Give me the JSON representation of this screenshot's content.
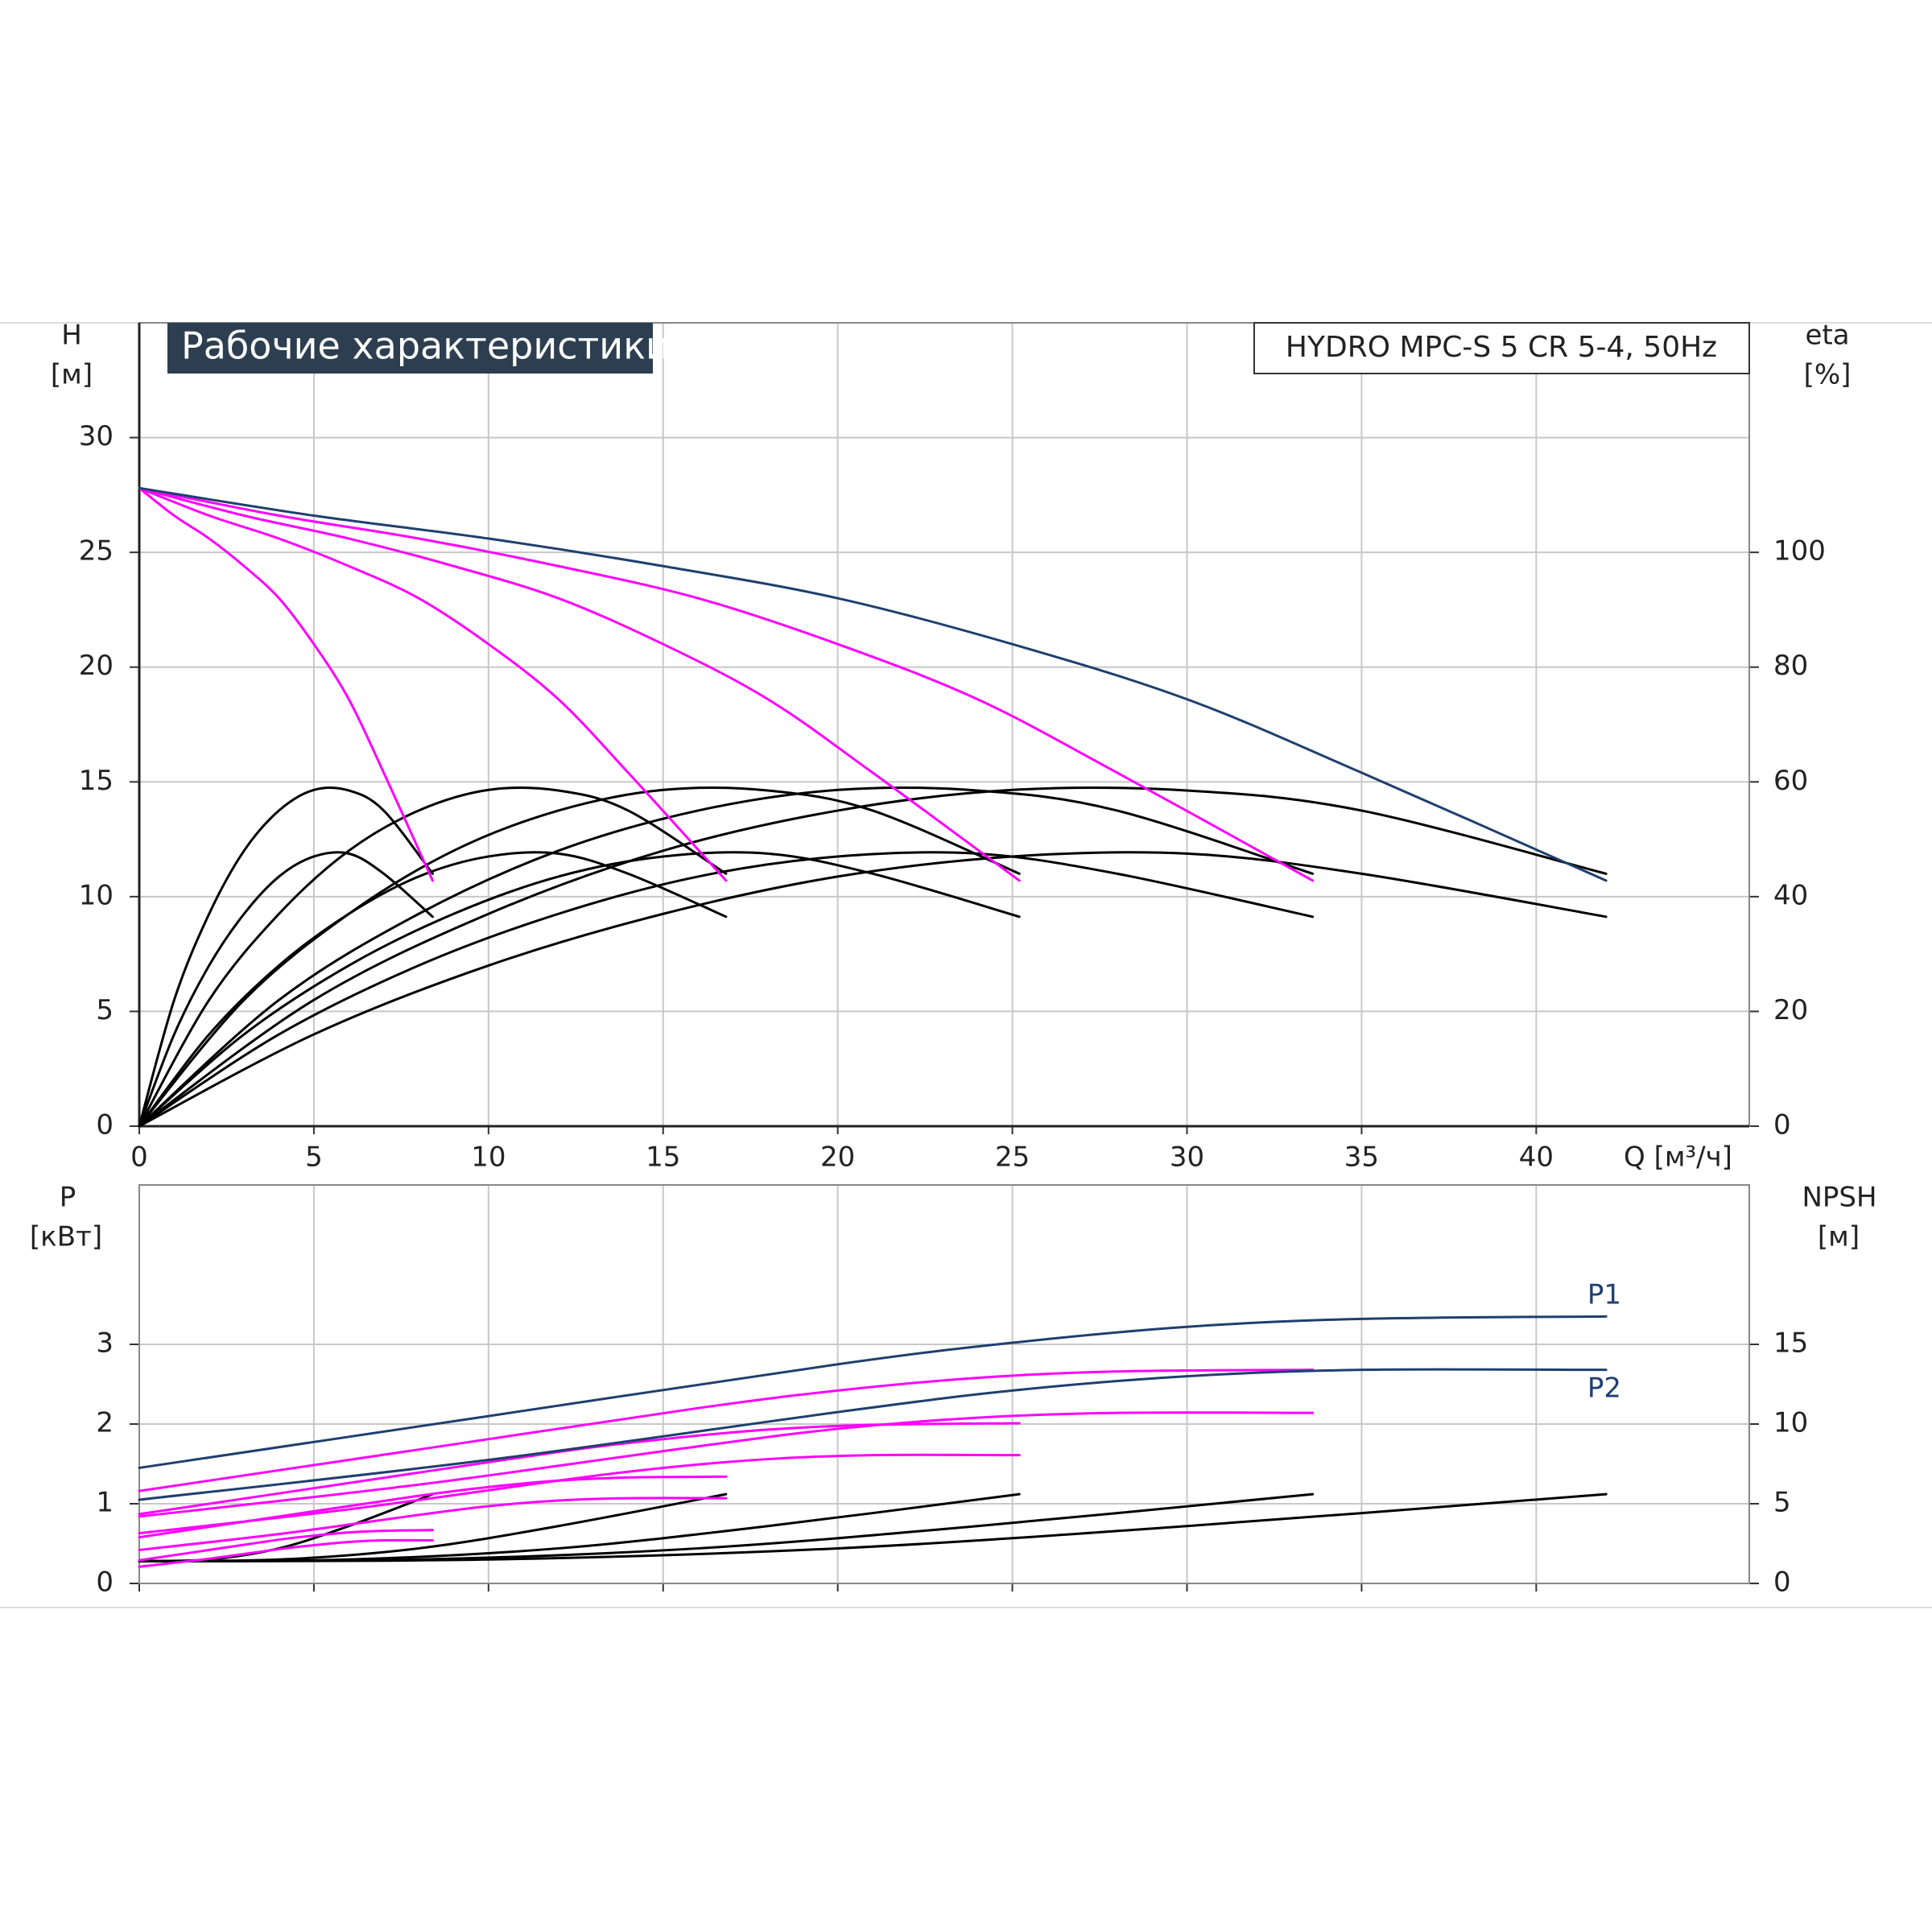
{
  "chart_data": [
    {
      "type": "line",
      "title": "Рабочие характеристики",
      "subtitle": "HYDRO MPC-S 5 CR 5-4, 50Hz",
      "ylabel": "H",
      "yunit": "[м]",
      "y2label": "eta",
      "y2unit": "[%]",
      "xlabel": "Q [м³/ч]",
      "xlim": [
        0,
        46.1
      ],
      "xticks": [
        0,
        5,
        10,
        15,
        20,
        25,
        30,
        35,
        40
      ],
      "ylim": [
        0,
        35
      ],
      "yticks": [
        0,
        5,
        10,
        15,
        20,
        25,
        30
      ],
      "y2lim": [
        0,
        140
      ],
      "y2ticks": [
        0,
        20,
        40,
        60,
        80,
        100
      ],
      "grid": true,
      "series": [
        {
          "color": "#000000",
          "axis": "y2",
          "x": [
            0,
            1,
            2,
            3,
            4,
            5,
            6,
            7,
            8.4
          ],
          "values": [
            0,
            22,
            37,
            48,
            55,
            58.6,
            58.5,
            55,
            44
          ]
        },
        {
          "color": "#000000",
          "axis": "y2",
          "x": [
            0,
            2,
            4,
            6,
            8,
            10,
            12,
            14,
            16.8
          ],
          "values": [
            0,
            22,
            37,
            48,
            55,
            58.6,
            58.5,
            55,
            44
          ]
        },
        {
          "color": "#000000",
          "axis": "y2",
          "x": [
            0,
            3,
            6,
            9,
            12,
            15,
            18,
            21,
            25.2
          ],
          "values": [
            0,
            22,
            37,
            48,
            55,
            58.6,
            58.5,
            55,
            44
          ]
        },
        {
          "color": "#000000",
          "axis": "y2",
          "x": [
            0,
            4,
            8,
            12,
            16,
            20,
            24,
            28,
            33.6
          ],
          "values": [
            0,
            22,
            37,
            48,
            55,
            58.6,
            58.5,
            55,
            44
          ]
        },
        {
          "color": "#000000",
          "axis": "y2",
          "x": [
            0,
            5,
            10,
            15,
            20,
            25,
            30,
            35,
            42
          ],
          "values": [
            0,
            22,
            37,
            48,
            55,
            58.6,
            58.5,
            55,
            44
          ]
        },
        {
          "color": "#000000",
          "axis": "y2",
          "x": [
            0,
            1,
            2,
            3,
            4,
            5,
            6,
            7,
            8.4
          ],
          "values": [
            0,
            16,
            28,
            37,
            43.5,
            47,
            47.5,
            44,
            36.5
          ]
        },
        {
          "color": "#000000",
          "axis": "y2",
          "x": [
            0,
            2,
            4,
            6,
            8,
            10,
            12,
            14,
            16.8
          ],
          "values": [
            0,
            16,
            28,
            37,
            43.5,
            47,
            47.5,
            44,
            36.5
          ]
        },
        {
          "color": "#000000",
          "axis": "y2",
          "x": [
            0,
            3,
            6,
            9,
            12,
            15,
            18,
            21,
            25.2
          ],
          "values": [
            0,
            16,
            28,
            37,
            43.5,
            47,
            47.5,
            44,
            36.5
          ]
        },
        {
          "color": "#000000",
          "axis": "y2",
          "x": [
            0,
            4,
            8,
            12,
            16,
            20,
            24,
            28,
            33.6
          ],
          "values": [
            0,
            16,
            28,
            37,
            43.5,
            47,
            47.5,
            44,
            36.5
          ]
        },
        {
          "color": "#000000",
          "axis": "y2",
          "x": [
            0,
            5,
            10,
            15,
            20,
            25,
            30,
            35,
            42
          ],
          "values": [
            0,
            16,
            28,
            37,
            43.5,
            47,
            47.5,
            44,
            36.5
          ]
        },
        {
          "color": "#ff00ff",
          "x": [
            0,
            1,
            2,
            3,
            4,
            5,
            6,
            7,
            8.4
          ],
          "values": [
            27.8,
            26.6,
            25.6,
            24.4,
            23.0,
            21.0,
            18.6,
            15.4,
            10.7
          ]
        },
        {
          "color": "#ff00ff",
          "x": [
            0,
            2,
            4,
            6,
            8,
            10,
            12,
            14,
            16.8
          ],
          "values": [
            27.8,
            26.6,
            25.6,
            24.4,
            23.0,
            21.0,
            18.6,
            15.4,
            10.7
          ]
        },
        {
          "color": "#ff00ff",
          "x": [
            0,
            3,
            6,
            9,
            12,
            15,
            18,
            21,
            25.2
          ],
          "values": [
            27.8,
            26.6,
            25.6,
            24.4,
            23.0,
            21.0,
            18.6,
            15.4,
            10.7
          ]
        },
        {
          "color": "#ff00ff",
          "x": [
            0,
            4,
            8,
            12,
            16,
            20,
            24,
            28,
            33.6
          ],
          "values": [
            27.8,
            26.6,
            25.6,
            24.4,
            23.0,
            21.0,
            18.6,
            15.4,
            10.7
          ]
        },
        {
          "color": "#1f3f6e",
          "x": [
            0,
            5,
            10,
            15,
            20,
            25,
            30,
            35,
            42
          ],
          "values": [
            27.8,
            26.6,
            25.6,
            24.4,
            23.0,
            21.0,
            18.6,
            15.4,
            10.7
          ]
        }
      ]
    },
    {
      "type": "line",
      "ylabel": "P",
      "yunit": "[кВт]",
      "y2label": "NPSH",
      "y2unit": "[м]",
      "annotations": [
        "P1",
        "P2"
      ],
      "xlim": [
        0,
        46.1
      ],
      "xticks": [
        0,
        5,
        10,
        15,
        20,
        25,
        30,
        35,
        40
      ],
      "ylim": [
        0,
        5
      ],
      "yticks": [
        0,
        1,
        2,
        3
      ],
      "y2lim": [
        0,
        25
      ],
      "y2ticks": [
        0,
        5,
        10,
        15
      ],
      "grid": true,
      "series": [
        {
          "color": "#000000",
          "axis": "y2",
          "x": [
            0,
            2,
            4,
            6,
            8.4
          ],
          "values": [
            1.4,
            1.5,
            2.2,
            3.6,
            5.6
          ]
        },
        {
          "color": "#000000",
          "axis": "y2",
          "x": [
            0,
            4,
            8,
            12,
            16.8
          ],
          "values": [
            1.4,
            1.5,
            2.2,
            3.6,
            5.6
          ]
        },
        {
          "color": "#000000",
          "axis": "y2",
          "x": [
            0,
            6,
            12,
            18,
            25.2
          ],
          "values": [
            1.4,
            1.5,
            2.2,
            3.6,
            5.6
          ]
        },
        {
          "color": "#000000",
          "axis": "y2",
          "x": [
            0,
            8,
            16,
            24,
            33.6
          ],
          "values": [
            1.4,
            1.5,
            2.2,
            3.6,
            5.6
          ]
        },
        {
          "color": "#000000",
          "axis": "y2",
          "x": [
            0,
            10,
            20,
            30,
            42
          ],
          "values": [
            1.4,
            1.5,
            2.2,
            3.6,
            5.6
          ]
        },
        {
          "color": "#ff00ff",
          "x": [
            0,
            2,
            4,
            5,
            6,
            7,
            8.4
          ],
          "values": [
            0.21,
            0.31,
            0.43,
            0.48,
            0.52,
            0.54,
            0.54
          ]
        },
        {
          "color": "#ff00ff",
          "x": [
            0,
            4,
            8,
            10,
            12,
            14,
            16.8
          ],
          "values": [
            0.42,
            0.62,
            0.86,
            0.97,
            1.04,
            1.07,
            1.07
          ]
        },
        {
          "color": "#ff00ff",
          "x": [
            0,
            6,
            12,
            15,
            18,
            21,
            25.2
          ],
          "values": [
            0.63,
            0.93,
            1.29,
            1.45,
            1.56,
            1.61,
            1.61
          ]
        },
        {
          "color": "#ff00ff",
          "x": [
            0,
            8,
            16,
            20,
            24,
            28,
            33.6
          ],
          "values": [
            0.84,
            1.24,
            1.72,
            1.94,
            2.08,
            2.14,
            2.14
          ]
        },
        {
          "color": "#ff00ff",
          "x": [
            0,
            2,
            4,
            5,
            6,
            7,
            8.4
          ],
          "values": [
            0.29,
            0.42,
            0.55,
            0.6,
            0.64,
            0.66,
            0.67
          ]
        },
        {
          "color": "#ff00ff",
          "x": [
            0,
            4,
            8,
            10,
            12,
            14,
            16.8
          ],
          "values": [
            0.58,
            0.84,
            1.1,
            1.21,
            1.29,
            1.33,
            1.34
          ]
        },
        {
          "color": "#ff00ff",
          "x": [
            0,
            6,
            12,
            15,
            18,
            21,
            25.2
          ],
          "values": [
            0.87,
            1.26,
            1.65,
            1.81,
            1.93,
            1.99,
            2.01
          ]
        },
        {
          "color": "#ff00ff",
          "x": [
            0,
            8,
            16,
            20,
            24,
            28,
            33.6
          ],
          "values": [
            1.16,
            1.68,
            2.2,
            2.42,
            2.58,
            2.66,
            2.68
          ]
        },
        {
          "color": "#1f3f6e",
          "x": [
            0,
            10,
            20,
            25,
            30,
            35,
            42
          ],
          "values": [
            1.05,
            1.55,
            2.15,
            2.42,
            2.6,
            2.68,
            2.68
          ]
        },
        {
          "color": "#1f3f6e",
          "x": [
            0,
            10,
            20,
            25,
            30,
            35,
            42
          ],
          "values": [
            1.45,
            2.1,
            2.75,
            3.02,
            3.22,
            3.32,
            3.35
          ]
        }
      ]
    }
  ]
}
